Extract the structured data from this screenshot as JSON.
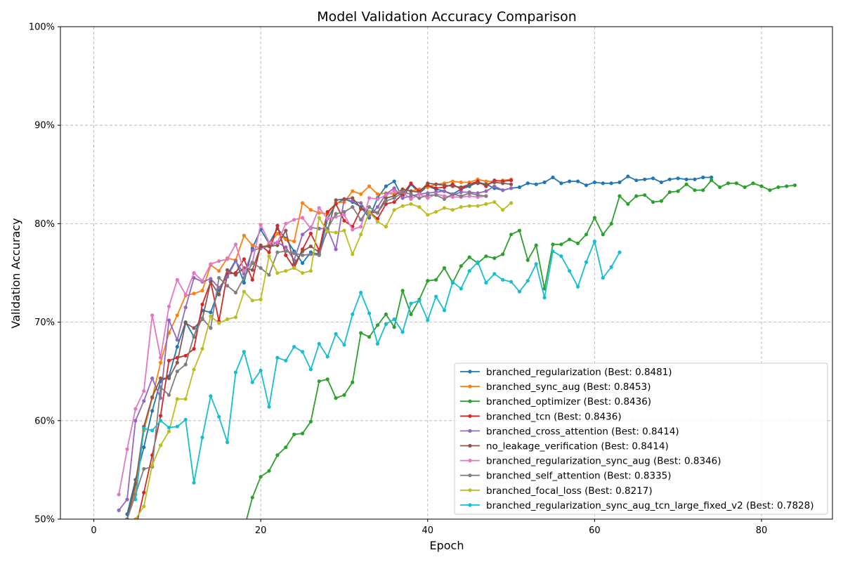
{
  "chart_data": {
    "type": "line",
    "title": "Model Validation Accuracy Comparison",
    "xlabel": "Epoch",
    "ylabel": "Validation Accuracy",
    "xlim": [
      -4,
      88.5
    ],
    "ylim": [
      0.5,
      1.0
    ],
    "x_ticks": [
      0,
      20,
      40,
      60,
      80
    ],
    "y_ticks": [
      0.5,
      0.6,
      0.7,
      0.8,
      0.9,
      1.0
    ],
    "y_tick_labels": [
      "50%",
      "60%",
      "70%",
      "80%",
      "90%",
      "100%"
    ],
    "grid": true,
    "legend_position": "lower-right",
    "series": [
      {
        "name": "branched_regularization (Best: 0.8481)",
        "color": "#1f77b4",
        "x": [
          4,
          5,
          6,
          7,
          8,
          9,
          10,
          11,
          12,
          13,
          14,
          15,
          16,
          17,
          18,
          19,
          20,
          21,
          22,
          23,
          24,
          25,
          26,
          27,
          28,
          29,
          30,
          31,
          32,
          33,
          34,
          35,
          36,
          37,
          38,
          39,
          40,
          41,
          42,
          43,
          44,
          45,
          46,
          47,
          48,
          49,
          50,
          51,
          52,
          53,
          54,
          55,
          56,
          57,
          58,
          59,
          60,
          61,
          62,
          63,
          64,
          65,
          66,
          67,
          68,
          69,
          70,
          71,
          72,
          73,
          74
        ],
        "y": [
          0.505,
          0.54,
          0.573,
          0.61,
          0.64,
          0.645,
          0.675,
          0.7,
          0.685,
          0.712,
          0.71,
          0.733,
          0.748,
          0.763,
          0.74,
          0.775,
          0.794,
          0.78,
          0.795,
          0.785,
          0.772,
          0.76,
          0.771,
          0.769,
          0.805,
          0.82,
          0.825,
          0.822,
          0.817,
          0.806,
          0.826,
          0.838,
          0.843,
          0.826,
          0.84,
          0.831,
          0.838,
          0.835,
          0.833,
          0.83,
          0.835,
          0.838,
          0.842,
          0.84,
          0.836,
          0.834,
          0.836,
          0.837,
          0.841,
          0.84,
          0.842,
          0.847,
          0.841,
          0.843,
          0.843,
          0.839,
          0.842,
          0.841,
          0.841,
          0.842,
          0.848,
          0.844,
          0.845,
          0.846,
          0.842,
          0.845,
          0.846,
          0.845,
          0.845,
          0.847,
          0.847
        ]
      },
      {
        "name": "branched_sync_aug (Best: 0.8453)",
        "color": "#ff7f0e",
        "x": [
          4,
          5,
          6,
          7,
          8,
          9,
          10,
          11,
          12,
          13,
          14,
          15,
          16,
          17,
          18,
          19,
          20,
          21,
          22,
          23,
          24,
          25,
          26,
          27,
          28,
          29,
          30,
          31,
          32,
          33,
          34,
          35,
          36,
          37,
          38,
          39,
          40,
          41,
          42,
          43,
          44,
          45,
          46,
          47,
          48,
          49,
          50
        ],
        "y": [
          0.5,
          0.53,
          0.59,
          0.623,
          0.659,
          0.689,
          0.707,
          0.727,
          0.729,
          0.732,
          0.758,
          0.752,
          0.765,
          0.763,
          0.788,
          0.778,
          0.775,
          0.779,
          0.79,
          0.784,
          0.782,
          0.821,
          0.814,
          0.811,
          0.81,
          0.821,
          0.822,
          0.833,
          0.83,
          0.838,
          0.83,
          0.831,
          0.83,
          0.835,
          0.833,
          0.835,
          0.837,
          0.84,
          0.841,
          0.843,
          0.842,
          0.842,
          0.845,
          0.843,
          0.843,
          0.844,
          0.845
        ]
      },
      {
        "name": "branched_optimizer (Best: 0.8436)",
        "color": "#2ca02c",
        "x": [
          18,
          19,
          20,
          21,
          22,
          23,
          24,
          25,
          26,
          27,
          28,
          29,
          30,
          31,
          32,
          33,
          34,
          35,
          36,
          37,
          38,
          39,
          40,
          41,
          42,
          43,
          44,
          45,
          46,
          47,
          48,
          49,
          50,
          51,
          52,
          53,
          54,
          55,
          56,
          57,
          58,
          59,
          60,
          61,
          62,
          63,
          64,
          65,
          66,
          67,
          68,
          69,
          70,
          71,
          72,
          73,
          74,
          75,
          76,
          77,
          78,
          79,
          80,
          81,
          82,
          83,
          84
        ],
        "y": [
          0.49,
          0.522,
          0.543,
          0.549,
          0.565,
          0.573,
          0.586,
          0.587,
          0.599,
          0.64,
          0.642,
          0.623,
          0.626,
          0.639,
          0.689,
          0.685,
          0.697,
          0.708,
          0.695,
          0.732,
          0.708,
          0.723,
          0.742,
          0.743,
          0.755,
          0.74,
          0.757,
          0.766,
          0.76,
          0.767,
          0.765,
          0.769,
          0.789,
          0.793,
          0.763,
          0.778,
          0.734,
          0.779,
          0.779,
          0.784,
          0.78,
          0.789,
          0.806,
          0.789,
          0.8,
          0.828,
          0.82,
          0.828,
          0.829,
          0.822,
          0.823,
          0.832,
          0.833,
          0.84,
          0.834,
          0.834,
          0.844,
          0.837,
          0.841,
          0.841,
          0.837,
          0.841,
          0.838,
          0.834,
          0.837,
          0.838,
          0.839
        ]
      },
      {
        "name": "branched_tcn (Best: 0.8436)",
        "color": "#d62728",
        "x": [
          5,
          6,
          7,
          8,
          9,
          10,
          11,
          12,
          13,
          14,
          15,
          16,
          17,
          18,
          19,
          20,
          21,
          22,
          23,
          24,
          25,
          26,
          27,
          28,
          29,
          30,
          31,
          32,
          33,
          34,
          35,
          36,
          37,
          38,
          39,
          40,
          41,
          42,
          43,
          44,
          45,
          46,
          47,
          48,
          49,
          50
        ],
        "y": [
          0.49,
          0.527,
          0.565,
          0.605,
          0.661,
          0.664,
          0.666,
          0.673,
          0.718,
          0.741,
          0.701,
          0.749,
          0.75,
          0.764,
          0.743,
          0.778,
          0.771,
          0.798,
          0.768,
          0.755,
          0.774,
          0.79,
          0.773,
          0.812,
          0.82,
          0.803,
          0.797,
          0.815,
          0.812,
          0.805,
          0.82,
          0.822,
          0.83,
          0.841,
          0.833,
          0.839,
          0.836,
          0.837,
          0.84,
          0.835,
          0.84,
          0.843,
          0.838,
          0.844,
          0.843,
          0.844
        ]
      },
      {
        "name": "branched_cross_attention (Best: 0.8414)",
        "color": "#9467bd",
        "x": [
          3,
          4,
          5,
          6,
          7,
          8,
          9,
          10,
          11,
          12,
          13,
          14,
          15,
          16,
          17,
          18,
          19,
          20,
          21,
          22,
          23,
          24,
          25,
          26,
          27,
          28,
          29,
          30,
          31,
          32,
          33,
          34,
          35,
          36,
          37,
          38,
          39,
          40,
          41,
          42,
          43,
          44,
          45,
          46,
          47,
          48,
          49,
          50
        ],
        "y": [
          0.509,
          0.52,
          0.6,
          0.62,
          0.643,
          0.623,
          0.702,
          0.682,
          0.715,
          0.745,
          0.741,
          0.744,
          0.735,
          0.746,
          0.762,
          0.749,
          0.773,
          0.775,
          0.777,
          0.781,
          0.776,
          0.763,
          0.789,
          0.796,
          0.795,
          0.795,
          0.774,
          0.825,
          0.823,
          0.821,
          0.808,
          0.817,
          0.83,
          0.836,
          0.826,
          0.828,
          0.83,
          0.831,
          0.832,
          0.833,
          0.829,
          0.832,
          0.832,
          0.831,
          0.833,
          0.838,
          0.834,
          0.836
        ]
      },
      {
        "name": "no_leakage_verification (Best: 0.8414)",
        "color": "#8c564b",
        "x": [
          4,
          5,
          6,
          7,
          8,
          9,
          10,
          11,
          12,
          13,
          14,
          15,
          16,
          17,
          18,
          19,
          20,
          21,
          22,
          23,
          24,
          25,
          26,
          27,
          28,
          29,
          30,
          31,
          32,
          33,
          34,
          35,
          36,
          37,
          38,
          39,
          40,
          41,
          42,
          43,
          44,
          45,
          46,
          47,
          48,
          49,
          50
        ],
        "y": [
          0.5,
          0.536,
          0.594,
          0.624,
          0.643,
          0.643,
          0.659,
          0.699,
          0.694,
          0.703,
          0.741,
          0.728,
          0.753,
          0.748,
          0.755,
          0.753,
          0.777,
          0.777,
          0.778,
          0.793,
          0.759,
          0.772,
          0.777,
          0.771,
          0.793,
          0.824,
          0.825,
          0.826,
          0.816,
          0.812,
          0.811,
          0.826,
          0.828,
          0.835,
          0.833,
          0.832,
          0.841,
          0.84,
          0.839,
          0.838,
          0.837,
          0.84,
          0.841,
          0.84,
          0.842,
          0.841,
          0.84
        ]
      },
      {
        "name": "branched_regularization_sync_aug (Best: 0.8346)",
        "color": "#e377c2",
        "x": [
          3,
          4,
          5,
          6,
          7,
          8,
          9,
          10,
          11,
          12,
          13,
          14,
          15,
          16,
          17,
          18,
          19,
          20,
          21,
          22,
          23,
          24,
          25,
          26,
          27,
          28,
          29,
          30,
          31,
          32,
          33,
          34,
          35,
          36,
          37,
          38,
          39,
          40,
          41,
          42,
          43,
          44,
          45,
          46,
          47
        ],
        "y": [
          0.525,
          0.571,
          0.612,
          0.63,
          0.707,
          0.664,
          0.716,
          0.743,
          0.728,
          0.75,
          0.742,
          0.759,
          0.762,
          0.764,
          0.779,
          0.752,
          0.761,
          0.799,
          0.781,
          0.781,
          0.8,
          0.804,
          0.806,
          0.795,
          0.816,
          0.805,
          0.807,
          0.809,
          0.794,
          0.797,
          0.826,
          0.825,
          0.829,
          0.833,
          0.832,
          0.825,
          0.83,
          0.826,
          0.83,
          0.828,
          0.827,
          0.827,
          0.828,
          0.827,
          0.828
        ]
      },
      {
        "name": "branched_self_attention (Best: 0.8335)",
        "color": "#7f7f7f",
        "x": [
          4,
          5,
          6,
          7,
          8,
          9,
          10,
          11,
          12,
          13,
          14,
          15,
          16,
          17,
          18,
          19,
          20,
          21,
          22,
          23,
          24,
          25,
          26,
          27,
          28,
          29,
          30,
          31,
          32,
          33,
          34,
          35,
          36,
          37,
          38,
          39,
          40,
          41,
          42,
          43,
          44,
          45,
          46,
          47
        ],
        "y": [
          0.5,
          0.525,
          0.551,
          0.553,
          0.634,
          0.626,
          0.65,
          0.657,
          0.686,
          0.704,
          0.694,
          0.745,
          0.737,
          0.73,
          0.745,
          0.76,
          0.755,
          0.748,
          0.771,
          0.772,
          0.77,
          0.768,
          0.769,
          0.768,
          0.795,
          0.81,
          0.812,
          0.817,
          0.804,
          0.817,
          0.811,
          0.823,
          0.826,
          0.832,
          0.83,
          0.826,
          0.829,
          0.829,
          0.825,
          0.83,
          0.828,
          0.831,
          0.829,
          0.828
        ]
      },
      {
        "name": "branched_focal_loss (Best: 0.8217)",
        "color": "#bcbd22",
        "x": [
          5,
          6,
          7,
          8,
          9,
          10,
          11,
          12,
          13,
          14,
          15,
          16,
          17,
          18,
          19,
          20,
          21,
          22,
          23,
          24,
          25,
          26,
          27,
          28,
          29,
          30,
          31,
          32,
          33,
          34,
          35,
          36,
          37,
          38,
          39,
          40,
          41,
          42,
          43,
          44,
          45,
          46,
          47,
          48,
          49,
          50
        ],
        "y": [
          0.5,
          0.513,
          0.555,
          0.575,
          0.589,
          0.622,
          0.622,
          0.652,
          0.673,
          0.706,
          0.699,
          0.703,
          0.705,
          0.731,
          0.722,
          0.723,
          0.767,
          0.75,
          0.752,
          0.755,
          0.75,
          0.752,
          0.806,
          0.792,
          0.791,
          0.793,
          0.769,
          0.789,
          0.812,
          0.802,
          0.797,
          0.814,
          0.818,
          0.82,
          0.817,
          0.809,
          0.812,
          0.816,
          0.814,
          0.817,
          0.818,
          0.818,
          0.82,
          0.822,
          0.814,
          0.821
        ]
      },
      {
        "name": "branched_regularization_sync_aug_tcn_large_fixed_v2 (Best: 0.7828)",
        "color": "#17becf",
        "x": [
          5,
          6,
          7,
          8,
          9,
          10,
          11,
          12,
          13,
          14,
          15,
          16,
          17,
          18,
          19,
          20,
          21,
          22,
          23,
          24,
          25,
          26,
          27,
          28,
          29,
          30,
          31,
          32,
          33,
          34,
          35,
          36,
          37,
          38,
          39,
          40,
          41,
          42,
          43,
          44,
          45,
          46,
          47,
          48,
          49,
          50,
          51,
          52,
          53,
          54,
          55,
          56,
          57,
          58,
          59,
          60,
          61,
          62,
          63
        ],
        "y": [
          0.52,
          0.592,
          0.59,
          0.6,
          0.593,
          0.594,
          0.601,
          0.537,
          0.583,
          0.625,
          0.604,
          0.578,
          0.649,
          0.67,
          0.639,
          0.651,
          0.614,
          0.664,
          0.661,
          0.675,
          0.67,
          0.652,
          0.678,
          0.665,
          0.688,
          0.677,
          0.708,
          0.73,
          0.709,
          0.678,
          0.698,
          0.703,
          0.69,
          0.719,
          0.722,
          0.702,
          0.726,
          0.712,
          0.741,
          0.734,
          0.752,
          0.761,
          0.74,
          0.749,
          0.743,
          0.741,
          0.731,
          0.742,
          0.759,
          0.725,
          0.772,
          0.767,
          0.752,
          0.736,
          0.761,
          0.782,
          0.745,
          0.756,
          0.771
        ]
      }
    ]
  }
}
